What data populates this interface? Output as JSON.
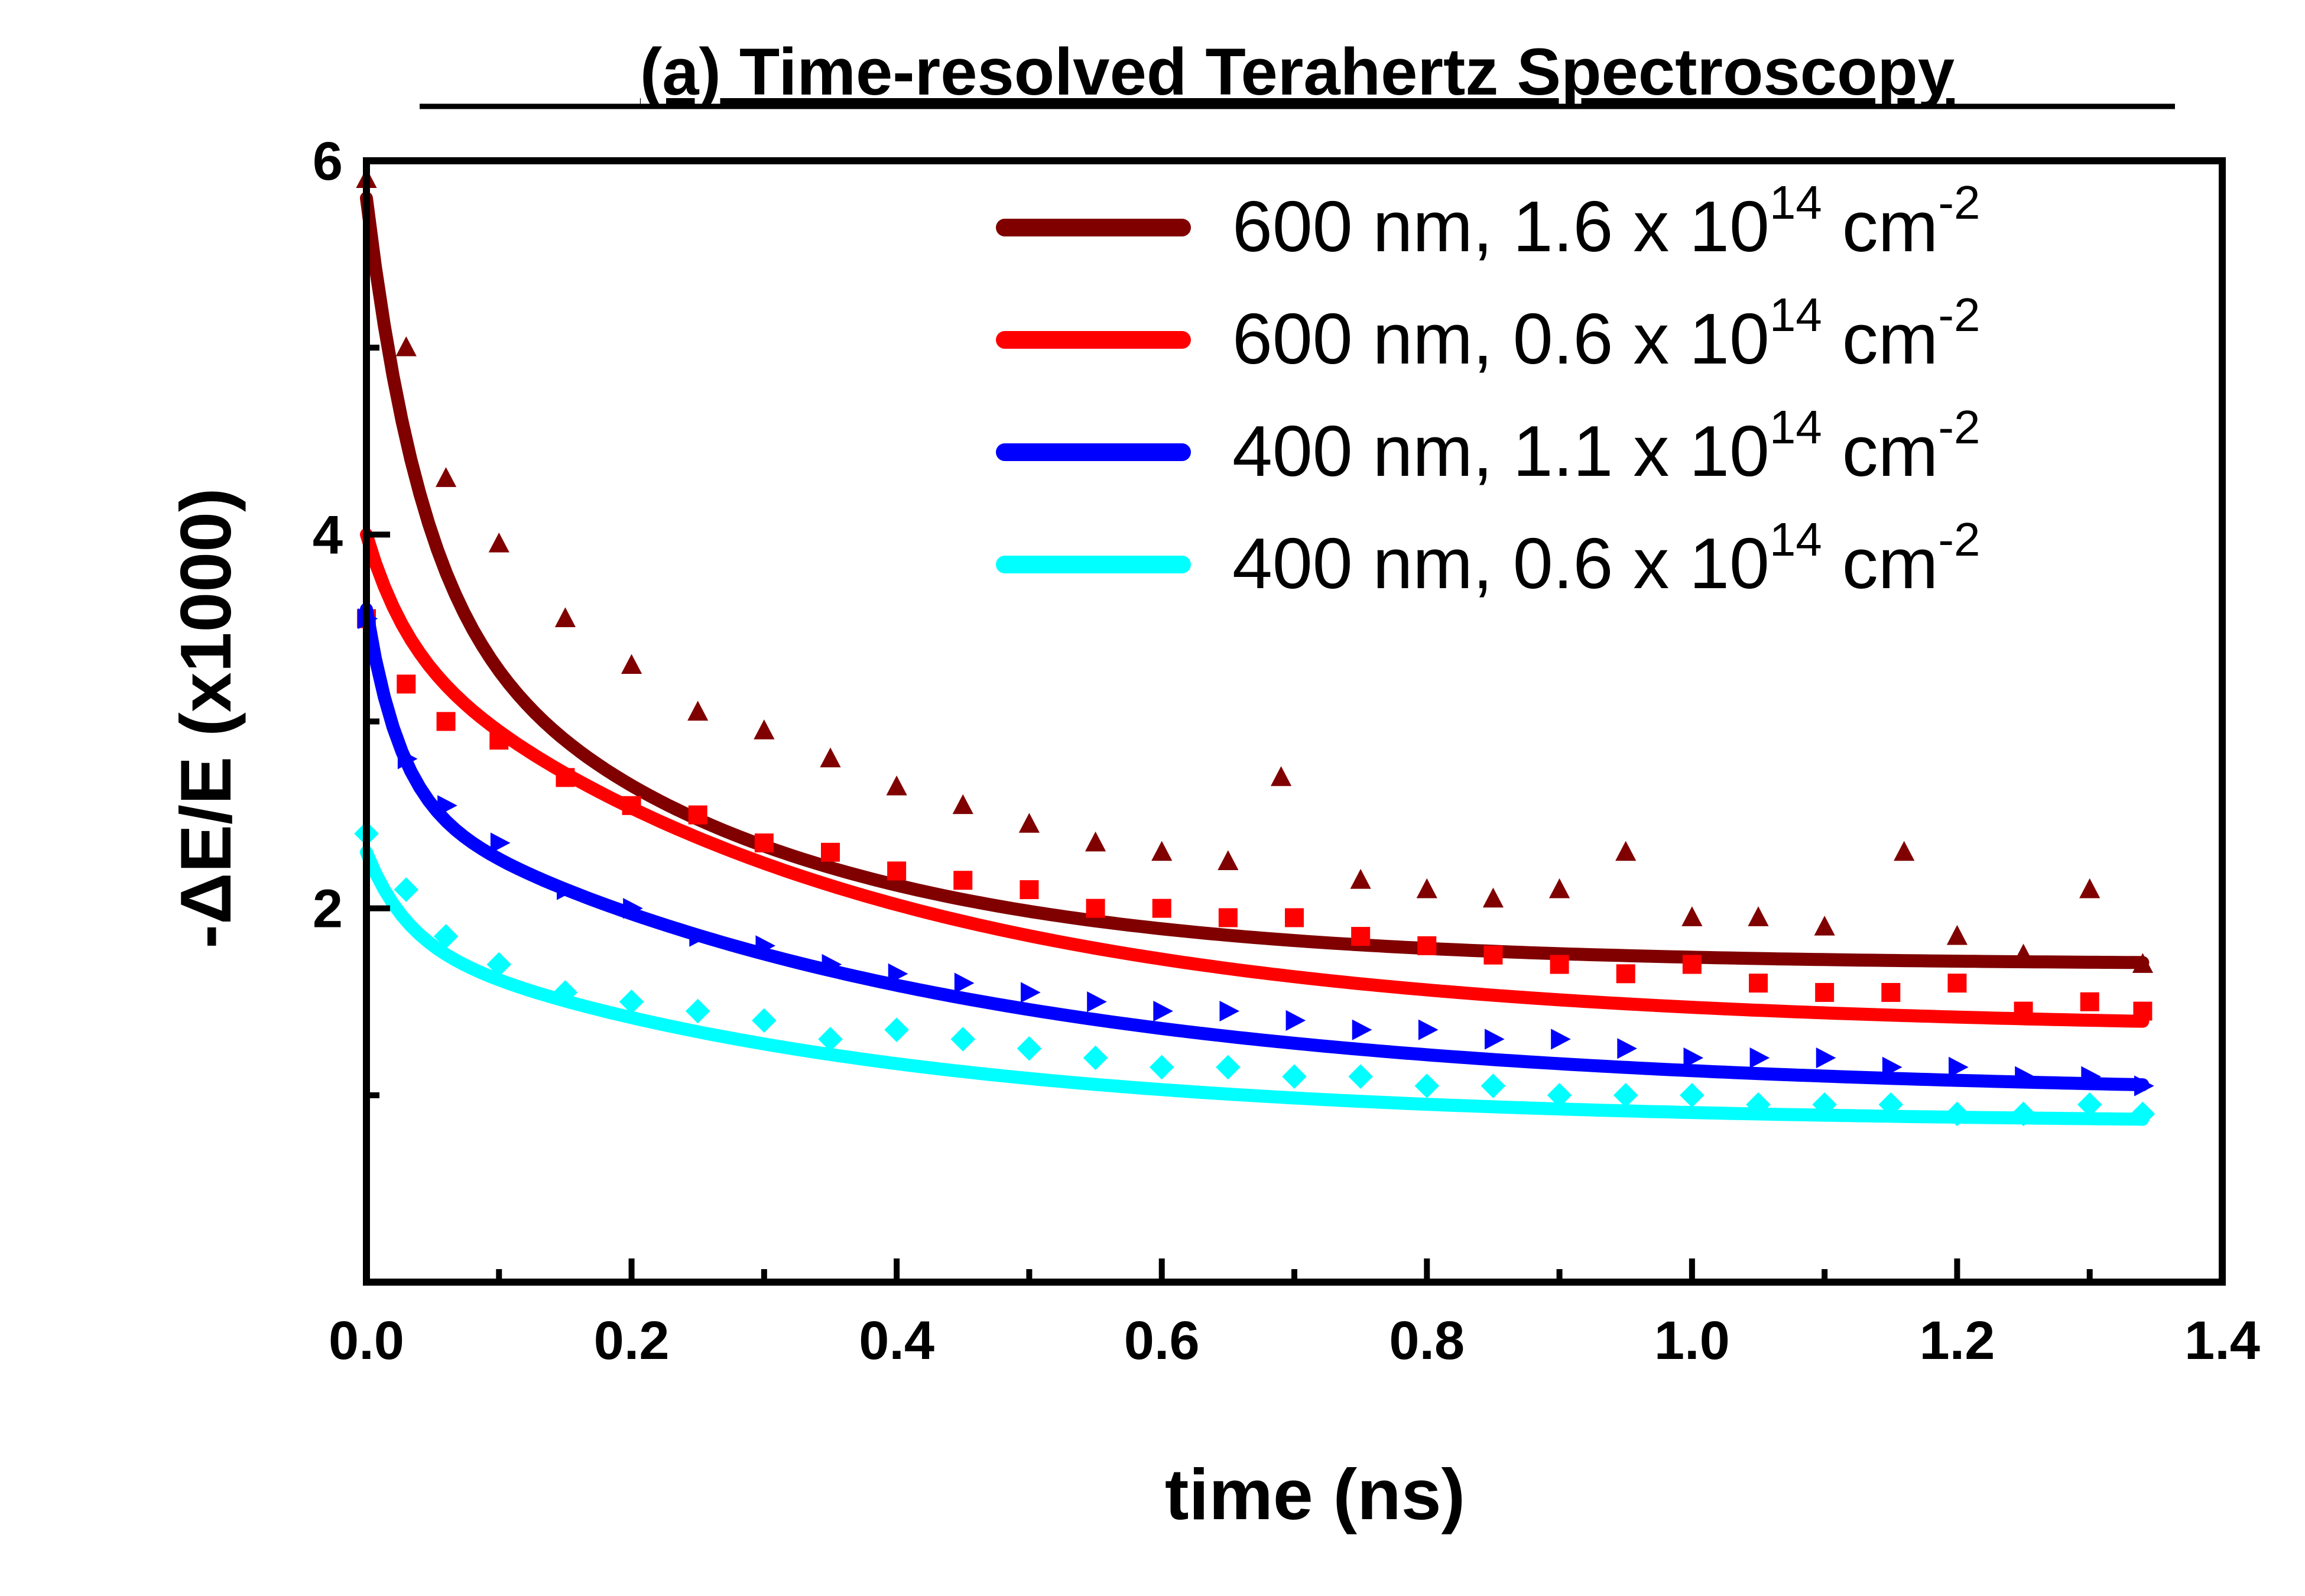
{
  "chart_data": {
    "type": "scatter",
    "title": "(a) Time-resolved Terahertz Spectroscopy",
    "xlabel": "time (ns)",
    "ylabel": "-ΔE/E (x1000)",
    "xlim": [
      0.0,
      1.4
    ],
    "ylim": [
      0.0,
      6.0
    ],
    "xticks": [
      "0.0",
      "0.2",
      "0.4",
      "0.6",
      "0.8",
      "1.0",
      "1.2",
      "1.4"
    ],
    "yticks": [
      "2",
      "4",
      "6"
    ],
    "grid": false,
    "legend_position": "top-right",
    "series": [
      {
        "name": "600 nm, 1.6 x 10",
        "name_sup": "14",
        "name_unit": " cm",
        "name_unit_sup": "-2",
        "color": "#800000",
        "marker": "triangle-up",
        "fit": {
          "a1": 2.0,
          "t1": 0.04,
          "a2": 2.1,
          "t2": 0.25,
          "c": 1.7
        },
        "x": [
          0.0,
          0.03,
          0.06,
          0.1,
          0.15,
          0.2,
          0.25,
          0.3,
          0.35,
          0.4,
          0.45,
          0.5,
          0.55,
          0.6,
          0.65,
          0.69,
          0.75,
          0.8,
          0.85,
          0.9,
          0.95,
          1.0,
          1.05,
          1.1,
          1.16,
          1.2,
          1.25,
          1.3,
          1.34
        ],
        "values": [
          5.9,
          5.0,
          4.3,
          3.95,
          3.55,
          3.3,
          3.05,
          2.95,
          2.8,
          2.65,
          2.55,
          2.45,
          2.35,
          2.3,
          2.25,
          2.7,
          2.15,
          2.1,
          2.05,
          2.1,
          2.3,
          1.95,
          1.95,
          1.9,
          2.3,
          1.85,
          1.75,
          2.1,
          1.7
        ]
      },
      {
        "name": "600 nm, 0.6 x 10",
        "name_sup": "14",
        "name_unit": " cm",
        "name_unit_sup": "-2",
        "color": "#ff0000",
        "marker": "square",
        "fit": {
          "a1": 0.55,
          "t1": 0.03,
          "a2": 2.1,
          "t2": 0.35,
          "c": 1.35
        },
        "x": [
          0.0,
          0.03,
          0.06,
          0.1,
          0.15,
          0.2,
          0.25,
          0.3,
          0.35,
          0.4,
          0.45,
          0.5,
          0.55,
          0.6,
          0.65,
          0.7,
          0.75,
          0.8,
          0.85,
          0.9,
          0.95,
          1.0,
          1.05,
          1.1,
          1.15,
          1.2,
          1.25,
          1.3,
          1.34
        ],
        "values": [
          3.55,
          3.2,
          3.0,
          2.9,
          2.7,
          2.55,
          2.5,
          2.35,
          2.3,
          2.2,
          2.15,
          2.1,
          2.0,
          2.0,
          1.95,
          1.95,
          1.85,
          1.8,
          1.75,
          1.7,
          1.65,
          1.7,
          1.6,
          1.55,
          1.55,
          1.6,
          1.45,
          1.5,
          1.45
        ]
      },
      {
        "name": "400 nm, 1.1 x 10",
        "name_sup": "14",
        "name_unit": " cm",
        "name_unit_sup": "-2",
        "color": "#0000ff",
        "marker": "triangle-right",
        "fit": {
          "a1": 1.0,
          "t1": 0.025,
          "a2": 1.6,
          "t2": 0.4,
          "c": 1.0
        },
        "x": [
          0.0,
          0.03,
          0.06,
          0.1,
          0.15,
          0.2,
          0.25,
          0.3,
          0.35,
          0.4,
          0.45,
          0.5,
          0.55,
          0.6,
          0.65,
          0.7,
          0.75,
          0.8,
          0.85,
          0.9,
          0.95,
          1.0,
          1.05,
          1.1,
          1.15,
          1.2,
          1.25,
          1.3,
          1.34
        ],
        "values": [
          3.55,
          2.8,
          2.55,
          2.35,
          2.1,
          2.0,
          1.85,
          1.8,
          1.7,
          1.65,
          1.6,
          1.55,
          1.5,
          1.45,
          1.45,
          1.4,
          1.35,
          1.35,
          1.3,
          1.3,
          1.25,
          1.2,
          1.2,
          1.2,
          1.15,
          1.15,
          1.1,
          1.1,
          1.05
        ]
      },
      {
        "name": "400 nm, 0.6 x 10",
        "name_sup": "14",
        "name_unit": " cm",
        "name_unit_sup": "-2",
        "color": "#00ffff",
        "marker": "diamond",
        "fit": {
          "a1": 0.45,
          "t1": 0.03,
          "a2": 1.0,
          "t2": 0.35,
          "c": 0.85
        },
        "x": [
          0.0,
          0.03,
          0.06,
          0.1,
          0.15,
          0.2,
          0.25,
          0.3,
          0.35,
          0.4,
          0.45,
          0.5,
          0.55,
          0.6,
          0.65,
          0.7,
          0.75,
          0.8,
          0.85,
          0.9,
          0.95,
          1.0,
          1.05,
          1.1,
          1.15,
          1.2,
          1.25,
          1.3,
          1.34
        ],
        "values": [
          2.4,
          2.1,
          1.85,
          1.7,
          1.55,
          1.5,
          1.45,
          1.4,
          1.3,
          1.35,
          1.3,
          1.25,
          1.2,
          1.15,
          1.15,
          1.1,
          1.1,
          1.05,
          1.05,
          1.0,
          1.0,
          1.0,
          0.95,
          0.95,
          0.95,
          0.9,
          0.9,
          0.95,
          0.9
        ]
      }
    ]
  }
}
